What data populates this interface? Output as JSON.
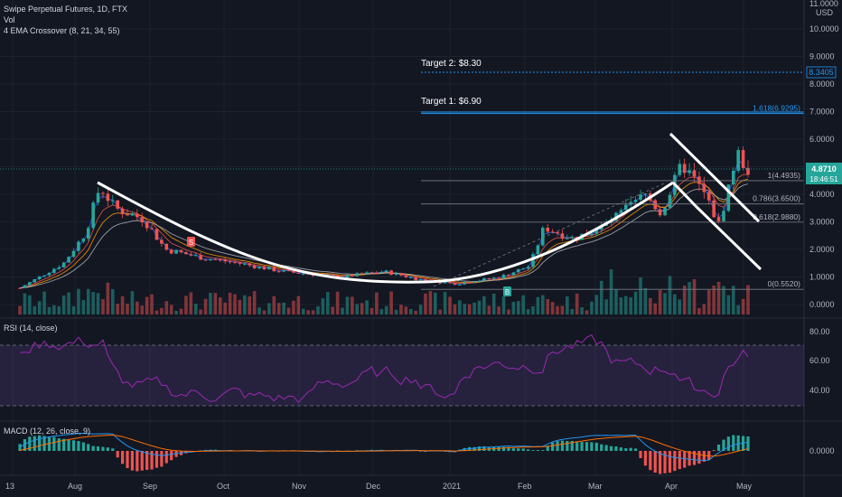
{
  "header": {
    "title": "Swipe Perpetual Futures, 1D, FTX",
    "vol_label": "Vol",
    "ema_label": "4 EMA Crossover (8, 21, 34, 55)"
  },
  "colors": {
    "bg": "#131722",
    "up": "#26a69a",
    "down": "#ef5350",
    "ema8": "#2962ff",
    "ema21": "#ef5350",
    "ema34": "#ff9800",
    "ema55": "#b2b5be",
    "fib": "#2196f3",
    "rsi": "#9c27b0",
    "macd": "#2196f3",
    "signal": "#ff6d00",
    "price_label": "#26a69a"
  },
  "price_axis": {
    "unit": "USD",
    "top_value": "11.0000",
    "ticks": [
      "10.0000",
      "9.0000",
      "8.0000",
      "7.0000",
      "6.0000",
      "5.0000",
      "4.0000",
      "3.0000",
      "2.0000",
      "1.0000",
      "0.0000"
    ],
    "current_price": "4.8710",
    "countdown": "18:46:51",
    "target2_tag": "8.3405"
  },
  "annotations": {
    "target1": "Target 1: $6.90",
    "target2": "Target 2: $8.30",
    "sell_marker": "S",
    "buy_marker": "B"
  },
  "fib_levels": [
    {
      "label": "1.618(6.9295)",
      "value": 6.9295
    },
    {
      "label": "1(4.4935)",
      "value": 4.4935
    },
    {
      "label": "0.786(3.6500)",
      "value": 3.65
    },
    {
      "label": "0.618(2.9880)",
      "value": 2.988
    },
    {
      "label": "0(0.5520)",
      "value": 0.552
    }
  ],
  "rsi": {
    "label": "RSI (14, close)",
    "ticks": [
      "80.00",
      "60.00",
      "40.00"
    ],
    "upper_band": 70,
    "lower_band": 30
  },
  "macd": {
    "label": "MACD (12, 26, close, 9)",
    "ticks": [
      "0.0000"
    ]
  },
  "time_axis": {
    "labels": [
      "13",
      "Aug",
      "Sep",
      "Oct",
      "Nov",
      "Dec",
      "2021",
      "Feb",
      "Mar",
      "Apr",
      "May"
    ]
  },
  "chart_data": {
    "type": "candlestick",
    "title": "Swipe Perpetual Futures, 1D, FTX",
    "ylim": [
      -0.4,
      11.0
    ],
    "y_unit": "USD",
    "x": [
      "2020-07-13",
      "2020-07-27",
      "2020-08-10",
      "2020-08-24",
      "2020-09-07",
      "2020-09-21",
      "2020-10-05",
      "2020-10-19",
      "2020-11-02",
      "2020-11-16",
      "2020-11-30",
      "2020-12-14",
      "2020-12-28",
      "2021-01-11",
      "2021-01-25",
      "2021-02-08",
      "2021-02-22",
      "2021-03-08",
      "2021-03-22",
      "2021-04-05",
      "2021-04-19",
      "2021-05-03"
    ],
    "close": [
      0.7,
      1.6,
      4.2,
      3.0,
      2.9,
      1.8,
      1.6,
      1.2,
      1.1,
      0.9,
      1.0,
      0.85,
      0.8,
      0.9,
      1.2,
      2.8,
      2.4,
      2.6,
      3.4,
      4.5,
      3.0,
      4.87
    ],
    "current_price": 4.871,
    "patterns": [
      "cup (rounded bottom) from Aug 2020 to Apr 2021",
      "falling wedge / bull flag in Apr 2021"
    ]
  }
}
